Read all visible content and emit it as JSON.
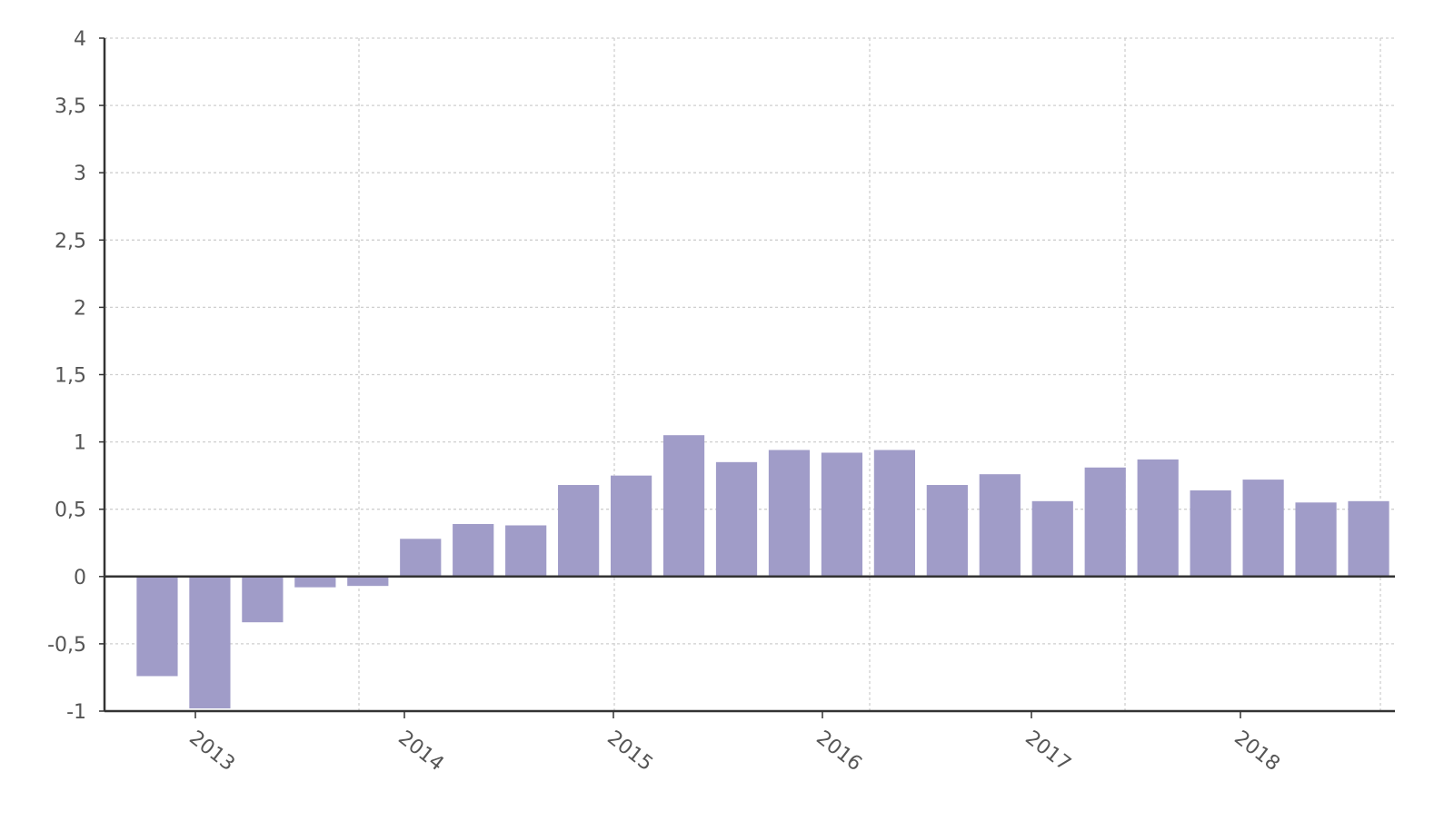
{
  "chart_data": {
    "type": "bar",
    "title": "",
    "xlabel": "",
    "ylabel": "",
    "ylim": [
      -1,
      4
    ],
    "yticks": [
      4,
      3.5,
      3,
      2.5,
      2,
      1.5,
      1,
      0.5,
      0,
      -0.5,
      -1
    ],
    "ytick_labels": [
      "4",
      "3,5",
      "3",
      "2,5",
      "2",
      "1,5",
      "1",
      "0,5",
      "0",
      "-0,5",
      "-1"
    ],
    "xtick_labels": [
      "2013",
      "2014",
      "2015",
      "2016",
      "2017",
      "2018"
    ],
    "grid": true,
    "bar_color": "#a09cc8",
    "values": [
      -0.74,
      -0.98,
      -0.34,
      -0.08,
      -0.07,
      0.28,
      0.39,
      0.38,
      0.68,
      0.75,
      1.05,
      0.85,
      0.94,
      0.92,
      0.94,
      0.68,
      0.76,
      0.56,
      0.81,
      0.87,
      0.64,
      0.72,
      0.55,
      0.56
    ]
  }
}
